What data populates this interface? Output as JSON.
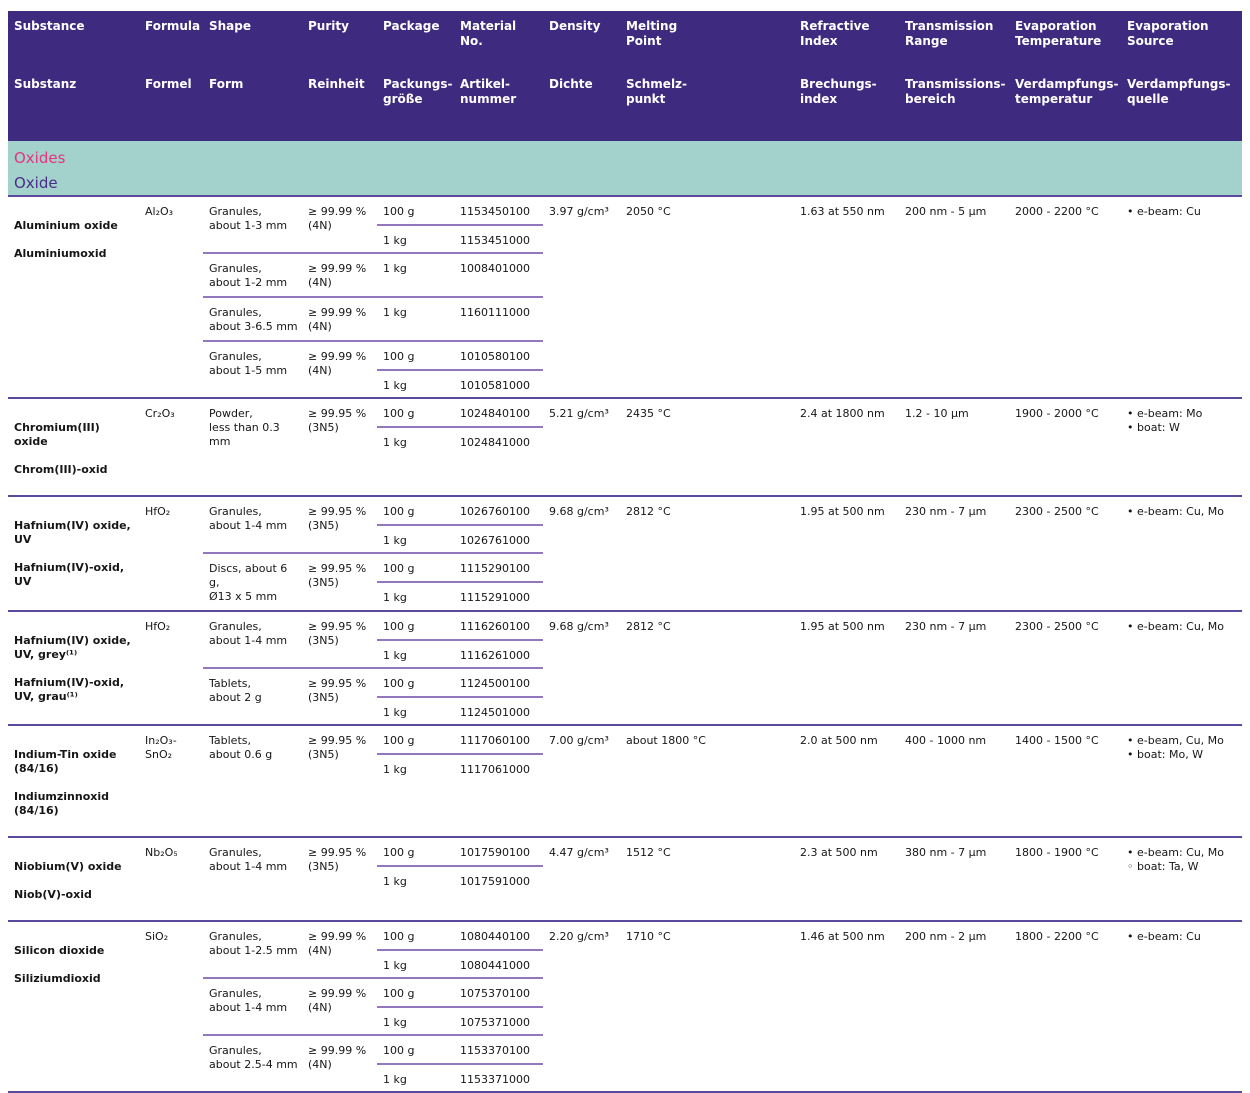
{
  "colors": {
    "header_bg": "#3E2B80",
    "header_text": "#FFFFFF",
    "section_bg": "#A3D2CC",
    "section_title_en": "#E4337F",
    "section_title_de": "#4A2C87",
    "divider_major": "#5A499C",
    "divider_minor": "#9478BE",
    "body_text": "#161616"
  },
  "table": {
    "section": {
      "en": "Oxides",
      "de": "Oxide"
    },
    "columns": [
      {
        "en": "Substance",
        "de": "Substanz"
      },
      {
        "en": "Formula",
        "de": "Formel"
      },
      {
        "en": "Shape",
        "de": "Form"
      },
      {
        "en": "Purity",
        "de": "Reinheit"
      },
      {
        "en": "Package",
        "de": "Packungs-\ngröße"
      },
      {
        "en": "Material\nNo.",
        "de": "Artikel-\nnummer"
      },
      {
        "en": "Density",
        "de": "Dichte"
      },
      {
        "en": "Melting\nPoint",
        "de": "Schmelz-\npunkt"
      },
      {
        "en": "Refractive\nIndex",
        "de": "Brechungs-\nindex"
      },
      {
        "en": "Transmission\nRange",
        "de": "Transmissions-\nbereich"
      },
      {
        "en": "Evaporation\nTemperature",
        "de": "Verdampfungs-\ntemperatur"
      },
      {
        "en": "Evaporation\nSource",
        "de": "Verdampfungs-\nquelle"
      }
    ],
    "rows": [
      {
        "name_en": "Aluminium oxide",
        "name_de": "Aluminiumoxid",
        "formula": "Al₂O₃",
        "variants": [
          {
            "shape": "Granules,\nabout 1-3 mm",
            "purity": "≥ 99.99 %\n(4N)",
            "packages": [
              {
                "size": "100 g",
                "material_no": "1153450100"
              },
              {
                "size": "1 kg",
                "material_no": "1153451000"
              }
            ]
          },
          {
            "shape": "Granules,\nabout 1-2 mm",
            "purity": "≥ 99.99 %\n(4N)",
            "packages": [
              {
                "size": "1 kg",
                "material_no": "1008401000"
              }
            ]
          },
          {
            "shape": "Granules,\nabout 3-6.5 mm",
            "purity": "≥ 99.99 %\n(4N)",
            "packages": [
              {
                "size": "1 kg",
                "material_no": "1160111000"
              }
            ]
          },
          {
            "shape": "Granules,\nabout 1-5 mm",
            "purity": "≥ 99.99 %\n(4N)",
            "packages": [
              {
                "size": "100 g",
                "material_no": "1010580100"
              },
              {
                "size": "1 kg",
                "material_no": "1010581000"
              }
            ]
          }
        ],
        "density": "3.97 g/cm³",
        "melting_point": "2050 °C",
        "refractive_index": "1.63 at 550 nm",
        "transmission_range": "200 nm - 5 µm",
        "evaporation_temperature": "2000 - 2200 °C",
        "evaporation_sources": [
          {
            "bullet": "•",
            "text": "e-beam: Cu"
          }
        ]
      },
      {
        "name_en": "Chromium(III)\noxide",
        "name_de": "Chrom(III)-oxid",
        "formula": "Cr₂O₃",
        "variants": [
          {
            "shape": "Powder,\nless than 0.3 mm",
            "purity": "≥ 99.95 %\n(3N5)",
            "packages": [
              {
                "size": "100 g",
                "material_no": "1024840100"
              },
              {
                "size": "1 kg",
                "material_no": "1024841000"
              }
            ]
          }
        ],
        "density": "5.21 g/cm³",
        "melting_point": "2435 °C",
        "refractive_index": "2.4 at 1800 nm",
        "transmission_range": "1.2 - 10 µm",
        "evaporation_temperature": "1900 - 2000 °C",
        "evaporation_sources": [
          {
            "bullet": "•",
            "text": "e-beam: Mo"
          },
          {
            "bullet": "•",
            "text": "boat: W"
          }
        ]
      },
      {
        "name_en": "Hafnium(IV) oxide,\nUV",
        "name_de": "Hafnium(IV)-oxid,\nUV",
        "formula": "HfO₂",
        "variants": [
          {
            "shape": "Granules,\nabout 1-4 mm",
            "purity": "≥ 99.95 %\n(3N5)",
            "packages": [
              {
                "size": "100 g",
                "material_no": "1026760100"
              },
              {
                "size": "1 kg",
                "material_no": "1026761000"
              }
            ]
          },
          {
            "shape": "Discs, about 6 g,\nØ13 x 5 mm",
            "purity": "≥ 99.95 %\n(3N5)",
            "packages": [
              {
                "size": "100 g",
                "material_no": "1115290100"
              },
              {
                "size": "1 kg",
                "material_no": "1115291000"
              }
            ]
          }
        ],
        "density": "9.68 g/cm³",
        "melting_point": "2812 °C",
        "refractive_index": "1.95 at 500 nm",
        "transmission_range": "230 nm - 7 µm",
        "evaporation_temperature": "2300 - 2500 °C",
        "evaporation_sources": [
          {
            "bullet": "•",
            "text": "e-beam: Cu, Mo"
          }
        ]
      },
      {
        "name_en": "Hafnium(IV) oxide,\nUV, grey⁽¹⁾",
        "name_de": "Hafnium(IV)-oxid,\nUV, grau⁽¹⁾",
        "formula": "HfO₂",
        "variants": [
          {
            "shape": "Granules,\nabout 1-4 mm",
            "purity": "≥ 99.95 %\n(3N5)",
            "packages": [
              {
                "size": "100 g",
                "material_no": "1116260100"
              },
              {
                "size": "1 kg",
                "material_no": "1116261000"
              }
            ]
          },
          {
            "shape": "Tablets,\nabout 2 g",
            "purity": "≥ 99.95 %\n(3N5)",
            "packages": [
              {
                "size": "100 g",
                "material_no": "1124500100"
              },
              {
                "size": "1 kg",
                "material_no": "1124501000"
              }
            ]
          }
        ],
        "density": "9.68 g/cm³",
        "melting_point": "2812 °C",
        "refractive_index": "1.95 at 500 nm",
        "transmission_range": "230 nm - 7 µm",
        "evaporation_temperature": "2300 - 2500 °C",
        "evaporation_sources": [
          {
            "bullet": "•",
            "text": "e-beam: Cu, Mo"
          }
        ]
      },
      {
        "name_en": "Indium-Tin oxide\n(84/16)",
        "name_de": "Indiumzinnoxid\n(84/16)",
        "formula": "In₂O₃-\nSnO₂",
        "variants": [
          {
            "shape": "Tablets,\nabout 0.6 g",
            "purity": "≥ 99.95 %\n(3N5)",
            "packages": [
              {
                "size": "100 g",
                "material_no": "1117060100"
              },
              {
                "size": "1 kg",
                "material_no": "1117061000"
              }
            ]
          }
        ],
        "density": "7.00 g/cm³",
        "melting_point": "about 1800 °C",
        "refractive_index": "2.0 at 500 nm",
        "transmission_range": "400 - 1000 nm",
        "evaporation_temperature": "1400 - 1500 °C",
        "evaporation_sources": [
          {
            "bullet": "•",
            "text": "e-beam, Cu, Mo"
          },
          {
            "bullet": "•",
            "text": "boat: Mo, W"
          }
        ]
      },
      {
        "name_en": "Niobium(V) oxide",
        "name_de": "Niob(V)-oxid",
        "formula": "Nb₂O₅",
        "variants": [
          {
            "shape": "Granules,\nabout 1-4 mm",
            "purity": "≥ 99.95 %\n(3N5)",
            "packages": [
              {
                "size": "100 g",
                "material_no": "1017590100"
              },
              {
                "size": "1 kg",
                "material_no": "1017591000"
              }
            ]
          }
        ],
        "density": "4.47 g/cm³",
        "melting_point": "1512 °C",
        "refractive_index": "2.3 at 500 nm",
        "transmission_range": "380 nm - 7 µm",
        "evaporation_temperature": "1800 - 1900 °C",
        "evaporation_sources": [
          {
            "bullet": "•",
            "text": "e-beam: Cu, Mo"
          },
          {
            "bullet": "◦",
            "text": "boat: Ta, W"
          }
        ]
      },
      {
        "name_en": "Silicon dioxide",
        "name_de": "Siliziumdioxid",
        "formula": "SiO₂",
        "variants": [
          {
            "shape": "Granules,\nabout 1-2.5 mm",
            "purity": "≥ 99.99 %\n(4N)",
            "packages": [
              {
                "size": "100 g",
                "material_no": "1080440100"
              },
              {
                "size": "1 kg",
                "material_no": "1080441000"
              }
            ]
          },
          {
            "shape": "Granules,\nabout 1-4 mm",
            "purity": "≥ 99.99 %\n(4N)",
            "packages": [
              {
                "size": "100 g",
                "material_no": "1075370100"
              },
              {
                "size": "1 kg",
                "material_no": "1075371000"
              }
            ]
          },
          {
            "shape": "Granules,\nabout 2.5-4 mm",
            "purity": "≥ 99.99 %\n(4N)",
            "packages": [
              {
                "size": "100 g",
                "material_no": "1153370100"
              },
              {
                "size": "1 kg",
                "material_no": "1153371000"
              }
            ]
          }
        ],
        "density": "2.20 g/cm³",
        "melting_point": "1710 °C",
        "refractive_index": "1.46 at 500 nm",
        "transmission_range": "200 nm - 2 µm",
        "evaporation_temperature": "1800 - 2200 °C",
        "evaporation_sources": [
          {
            "bullet": "•",
            "text": "e-beam: Cu"
          }
        ]
      }
    ]
  }
}
